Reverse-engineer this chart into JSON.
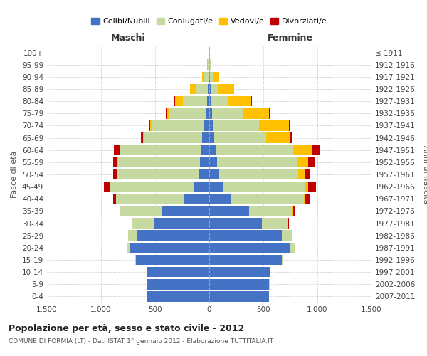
{
  "age_groups": [
    "0-4",
    "5-9",
    "10-14",
    "15-19",
    "20-24",
    "25-29",
    "30-34",
    "35-39",
    "40-44",
    "45-49",
    "50-54",
    "55-59",
    "60-64",
    "65-69",
    "70-74",
    "75-79",
    "80-84",
    "85-89",
    "90-94",
    "95-99",
    "100+"
  ],
  "birth_years": [
    "2007-2011",
    "2002-2006",
    "1997-2001",
    "1992-1996",
    "1987-1991",
    "1982-1986",
    "1977-1981",
    "1972-1976",
    "1967-1971",
    "1962-1966",
    "1957-1961",
    "1952-1956",
    "1947-1951",
    "1942-1946",
    "1937-1941",
    "1932-1936",
    "1927-1931",
    "1922-1926",
    "1917-1921",
    "1912-1916",
    "≤ 1911"
  ],
  "male": {
    "celibi": [
      570,
      570,
      580,
      680,
      730,
      670,
      510,
      440,
      240,
      140,
      95,
      85,
      75,
      65,
      55,
      35,
      18,
      12,
      8,
      4,
      2
    ],
    "coniugati": [
      1,
      1,
      2,
      5,
      30,
      80,
      205,
      380,
      620,
      780,
      760,
      760,
      745,
      540,
      480,
      335,
      225,
      115,
      38,
      8,
      2
    ],
    "vedovi": [
      0,
      0,
      0,
      0,
      0,
      0,
      0,
      0,
      1,
      2,
      2,
      2,
      5,
      8,
      10,
      20,
      75,
      48,
      18,
      5,
      1
    ],
    "divorziati": [
      0,
      0,
      0,
      0,
      1,
      2,
      5,
      10,
      30,
      50,
      30,
      40,
      55,
      20,
      15,
      10,
      5,
      0,
      0,
      0,
      0
    ]
  },
  "female": {
    "nubili": [
      550,
      555,
      565,
      670,
      750,
      670,
      490,
      370,
      195,
      125,
      95,
      75,
      58,
      48,
      38,
      28,
      15,
      10,
      6,
      3,
      2
    ],
    "coniugate": [
      1,
      1,
      2,
      8,
      45,
      100,
      240,
      400,
      680,
      760,
      730,
      740,
      720,
      480,
      420,
      278,
      155,
      75,
      28,
      8,
      2
    ],
    "vedove": [
      0,
      0,
      0,
      0,
      0,
      1,
      2,
      5,
      15,
      30,
      60,
      100,
      175,
      220,
      280,
      248,
      218,
      148,
      58,
      10,
      2
    ],
    "divorziate": [
      0,
      0,
      0,
      0,
      1,
      2,
      5,
      15,
      40,
      70,
      50,
      60,
      68,
      20,
      15,
      10,
      5,
      0,
      0,
      0,
      0
    ]
  },
  "colors": {
    "celibi": "#4472c4",
    "coniugati": "#c5d9a0",
    "vedovi": "#ffc000",
    "divorziati": "#c00000"
  },
  "title": "Popolazione per età, sesso e stato civile - 2012",
  "subtitle": "COMUNE DI FORMIA (LT) - Dati ISTAT 1° gennaio 2012 - Elaborazione TUTTITALIA.IT",
  "xlabel_left": "Maschi",
  "xlabel_right": "Femmine",
  "ylabel_left": "Fasce di età",
  "ylabel_right": "Anni di nascita",
  "xlim": 1500,
  "background_color": "#ffffff",
  "grid_color": "#bbbbbb"
}
